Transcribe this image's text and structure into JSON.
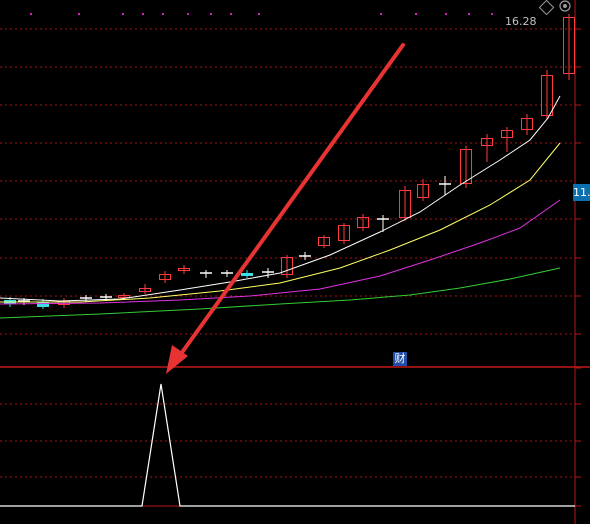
{
  "price_labels": {
    "high": "16.28",
    "axis_current": "11."
  },
  "badges": {
    "finance": "财"
  },
  "icons": {
    "top_right": [
      "diamond-icon",
      "marker-icon"
    ]
  },
  "colors": {
    "background": "#000000",
    "up_candle": "#ff3b3b",
    "down_candle": "#39e0e8",
    "flat_candle": "#ffffff",
    "grid": "#a31515",
    "ma_white": "#ffffff",
    "ma_yellow": "#ffff66",
    "ma_magenta": "#e033e0",
    "ma_green": "#33cc33",
    "arrow": "#e83333",
    "indicator": "#ffffff"
  }
}
